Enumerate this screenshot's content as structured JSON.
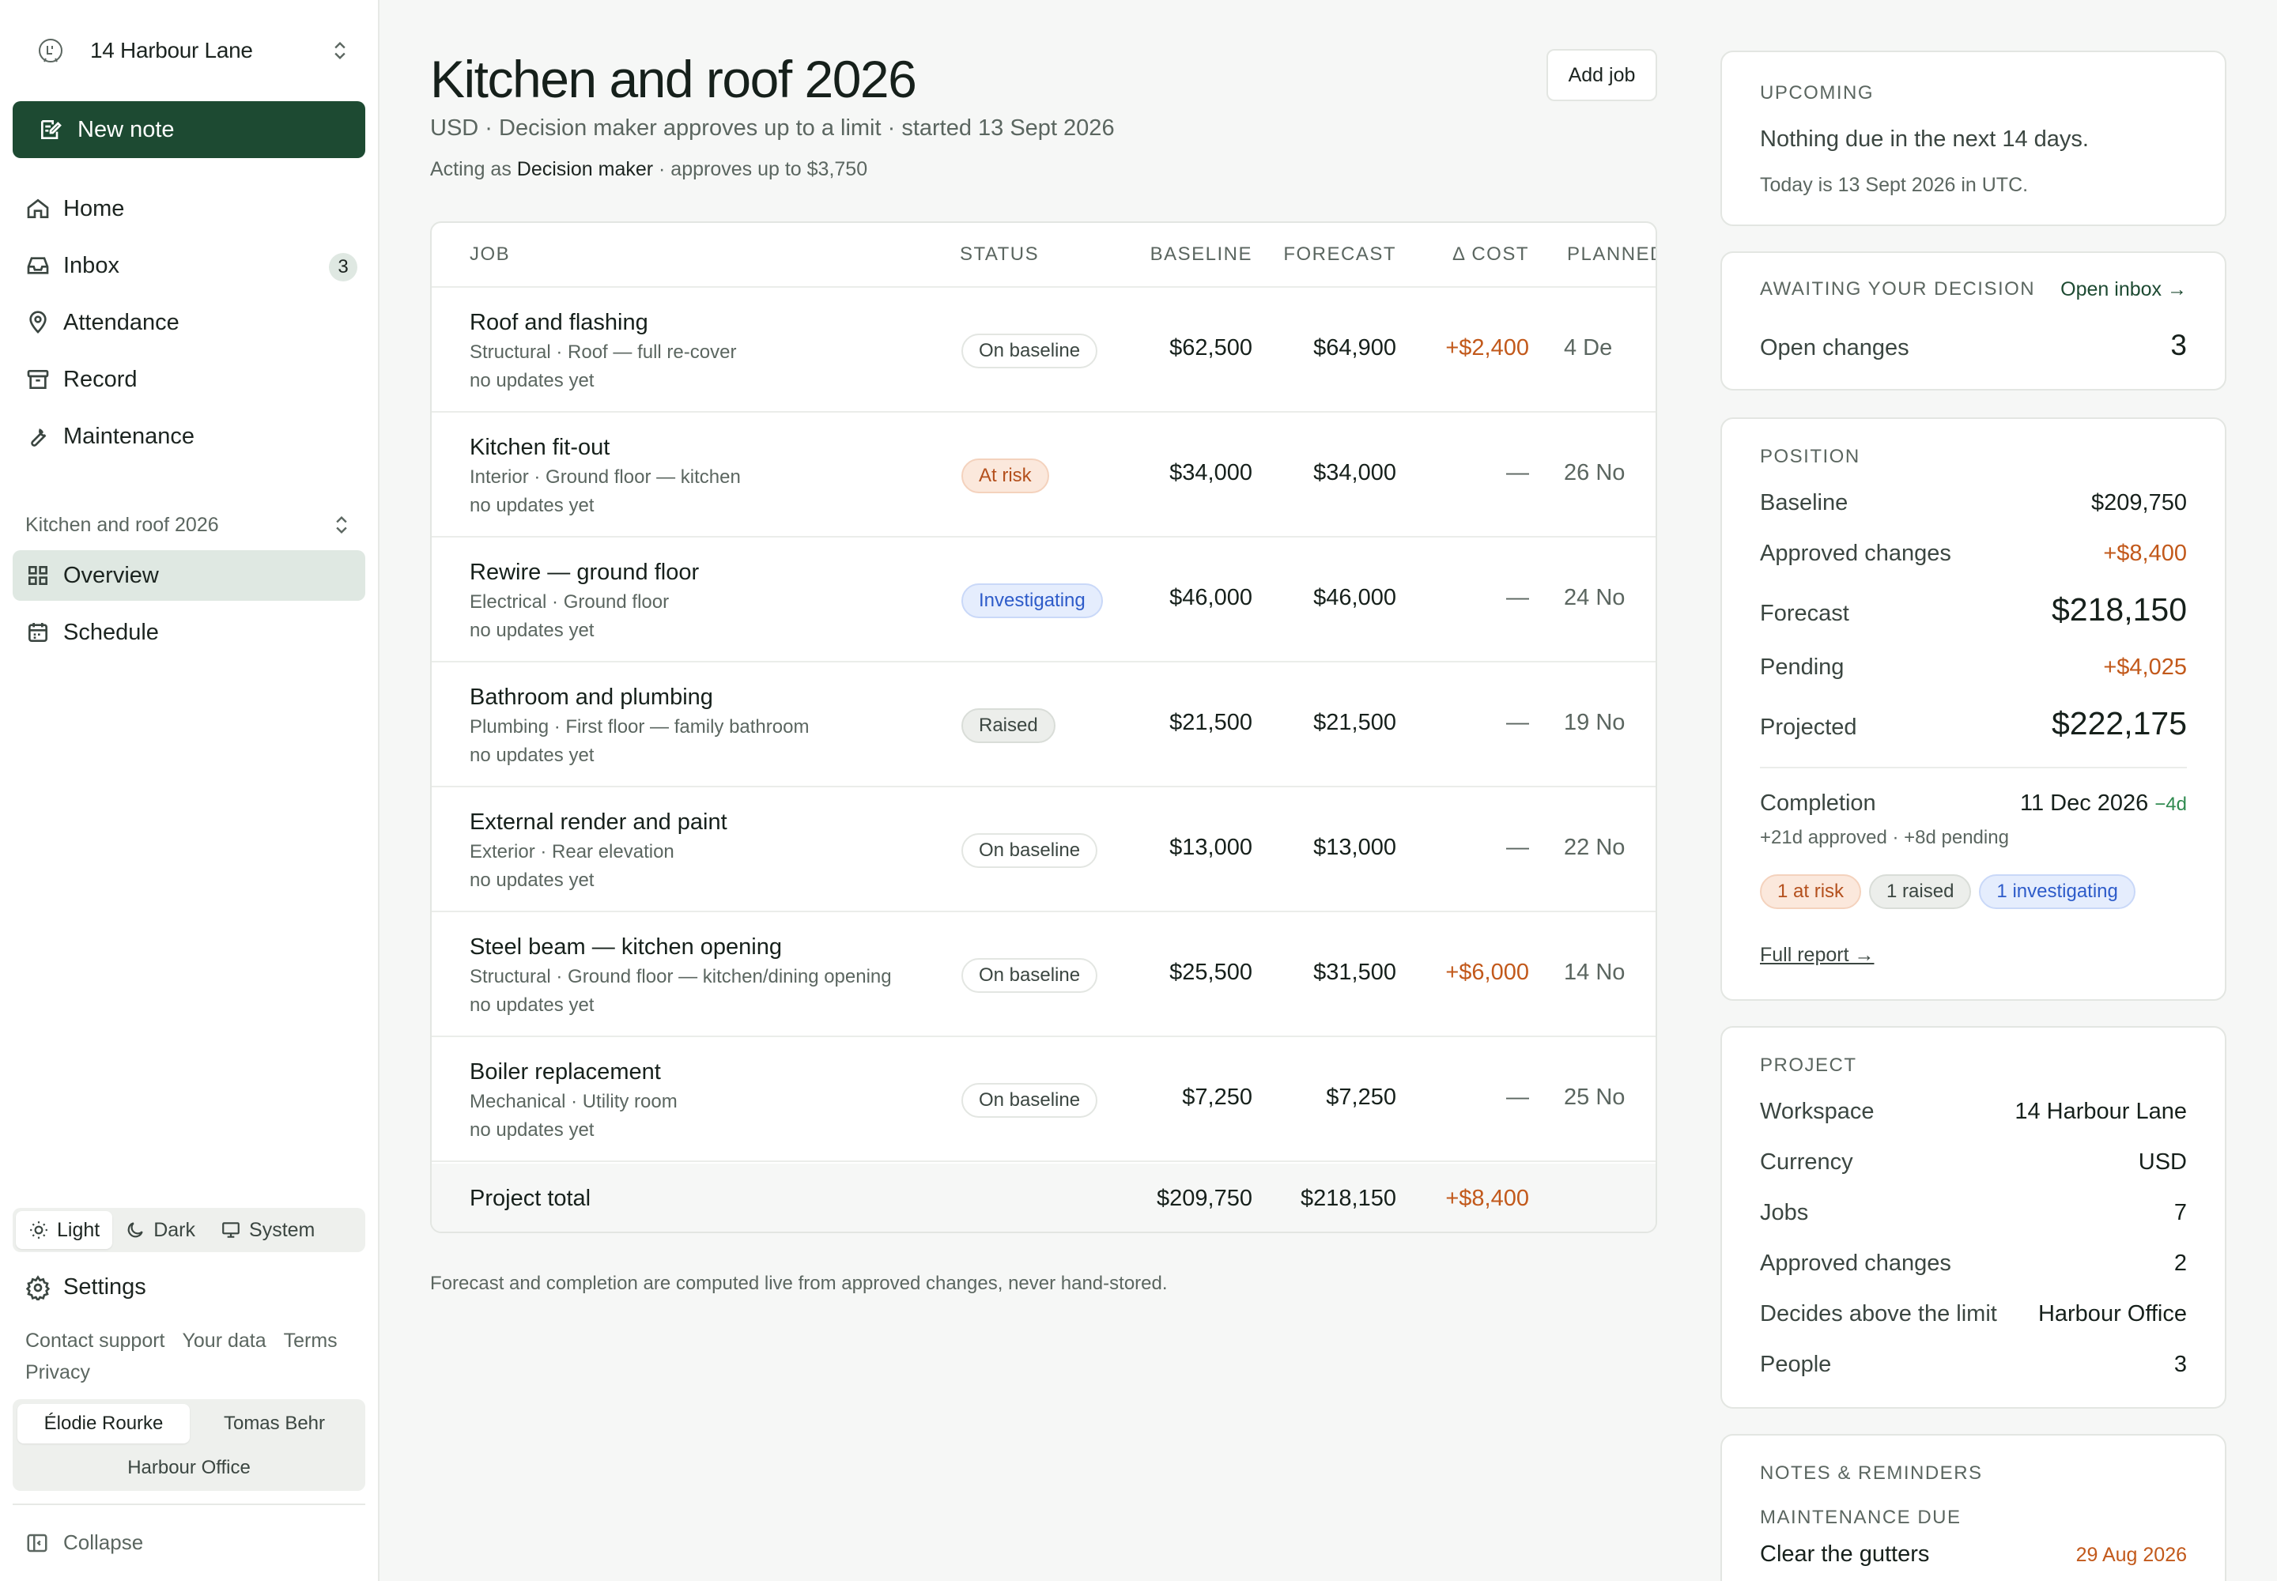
{
  "sidebar": {
    "workspace": "14 Harbour Lane",
    "new_note": "New note",
    "nav": [
      {
        "label": "Home",
        "icon": "home-icon"
      },
      {
        "label": "Inbox",
        "icon": "inbox-icon",
        "badge": "3"
      },
      {
        "label": "Attendance",
        "icon": "map-pin-icon"
      },
      {
        "label": "Record",
        "icon": "archive-icon"
      },
      {
        "label": "Maintenance",
        "icon": "wrench-icon"
      }
    ],
    "project": "Kitchen and roof 2026",
    "project_nav": [
      {
        "label": "Overview",
        "icon": "grid-icon",
        "active": true
      },
      {
        "label": "Schedule",
        "icon": "calendar-icon"
      }
    ],
    "theme": {
      "light": "Light",
      "dark": "Dark",
      "system": "System"
    },
    "settings": "Settings",
    "links": {
      "contact": "Contact support",
      "data": "Your data",
      "terms": "Terms",
      "privacy": "Privacy"
    },
    "people": {
      "person_a": "Élodie Rourke",
      "person_b": "Tomas Behr",
      "org": "Harbour Office"
    },
    "collapse": "Collapse"
  },
  "main": {
    "title": "Kitchen and roof 2026",
    "subtitle": "USD · Decision maker approves up to a limit · started 13 Sept 2026",
    "acting_prefix": "Acting as",
    "acting_role": "Decision maker",
    "acting_suffix": "· approves up to $3,750",
    "add_job": "Add job",
    "columns": {
      "job": "JOB",
      "status": "STATUS",
      "baseline": "BASELINE",
      "forecast": "FORECAST",
      "delta": "Δ COST",
      "planned": "PLANNED"
    },
    "rows": [
      {
        "name": "Roof and flashing",
        "meta": "Structural · Roof — full re-cover",
        "updates": "no updates yet",
        "status": "On baseline",
        "status_kind": "baseline",
        "baseline": "$62,500",
        "forecast": "$64,900",
        "delta": "+$2,400",
        "planned": "4 De"
      },
      {
        "name": "Kitchen fit-out",
        "meta": "Interior · Ground floor — kitchen",
        "updates": "no updates yet",
        "status": "At risk",
        "status_kind": "risk",
        "baseline": "$34,000",
        "forecast": "$34,000",
        "delta": "—",
        "planned": "26 No"
      },
      {
        "name": "Rewire — ground floor",
        "meta": "Electrical · Ground floor",
        "updates": "no updates yet",
        "status": "Investigating",
        "status_kind": "invest",
        "baseline": "$46,000",
        "forecast": "$46,000",
        "delta": "—",
        "planned": "24 No"
      },
      {
        "name": "Bathroom and plumbing",
        "meta": "Plumbing · First floor — family bathroom",
        "updates": "no updates yet",
        "status": "Raised",
        "status_kind": "raised",
        "baseline": "$21,500",
        "forecast": "$21,500",
        "delta": "—",
        "planned": "19 No"
      },
      {
        "name": "External render and paint",
        "meta": "Exterior · Rear elevation",
        "updates": "no updates yet",
        "status": "On baseline",
        "status_kind": "baseline",
        "baseline": "$13,000",
        "forecast": "$13,000",
        "delta": "—",
        "planned": "22 No"
      },
      {
        "name": "Steel beam — kitchen opening",
        "meta": "Structural · Ground floor — kitchen/dining opening",
        "updates": "no updates yet",
        "status": "On baseline",
        "status_kind": "baseline",
        "baseline": "$25,500",
        "forecast": "$31,500",
        "delta": "+$6,000",
        "planned": "14 No"
      },
      {
        "name": "Boiler replacement",
        "meta": "Mechanical · Utility room",
        "updates": "no updates yet",
        "status": "On baseline",
        "status_kind": "baseline",
        "baseline": "$7,250",
        "forecast": "$7,250",
        "delta": "—",
        "planned": "25 No"
      }
    ],
    "total": {
      "label": "Project total",
      "baseline": "$209,750",
      "forecast": "$218,150",
      "delta": "+$8,400"
    },
    "footnote": "Forecast and completion are computed live from approved changes, never hand-stored."
  },
  "right": {
    "upcoming": {
      "label": "UPCOMING",
      "text": "Nothing due in the next 14 days.",
      "today": "Today is 13 Sept 2026 in UTC."
    },
    "awaiting": {
      "label": "AWAITING YOUR DECISION",
      "link": "Open inbox →",
      "key": "Open changes",
      "value": "3"
    },
    "position": {
      "label": "POSITION",
      "baseline_k": "Baseline",
      "baseline_v": "$209,750",
      "approved_k": "Approved changes",
      "approved_v": "+$8,400",
      "forecast_k": "Forecast",
      "forecast_v": "$218,150",
      "pending_k": "Pending",
      "pending_v": "+$4,025",
      "projected_k": "Projected",
      "projected_v": "$222,175",
      "completion_k": "Completion",
      "completion_v": "11 Dec 2026",
      "completion_delta": "−4d",
      "completion_note": "+21d approved · +8d pending",
      "chips": {
        "risk": "1 at risk",
        "raised": "1 raised",
        "invest": "1 investigating"
      },
      "report_link": "Full report →"
    },
    "project": {
      "label": "PROJECT",
      "workspace_k": "Workspace",
      "workspace_v": "14 Harbour Lane",
      "currency_k": "Currency",
      "currency_v": "USD",
      "jobs_k": "Jobs",
      "jobs_v": "7",
      "approved_k": "Approved changes",
      "approved_v": "2",
      "decides_k": "Decides above the limit",
      "decides_v": "Harbour Office",
      "people_k": "People",
      "people_v": "3"
    },
    "notes": {
      "label": "NOTES & REMINDERS",
      "sub": "MAINTENANCE DUE",
      "item": "Clear the gutters",
      "date": "29 Aug 2026"
    }
  },
  "colors": {
    "brand": "#1d4a32",
    "accent_orange": "#c2591b",
    "green": "#2f8a4f",
    "blue": "#2d5bc9"
  }
}
